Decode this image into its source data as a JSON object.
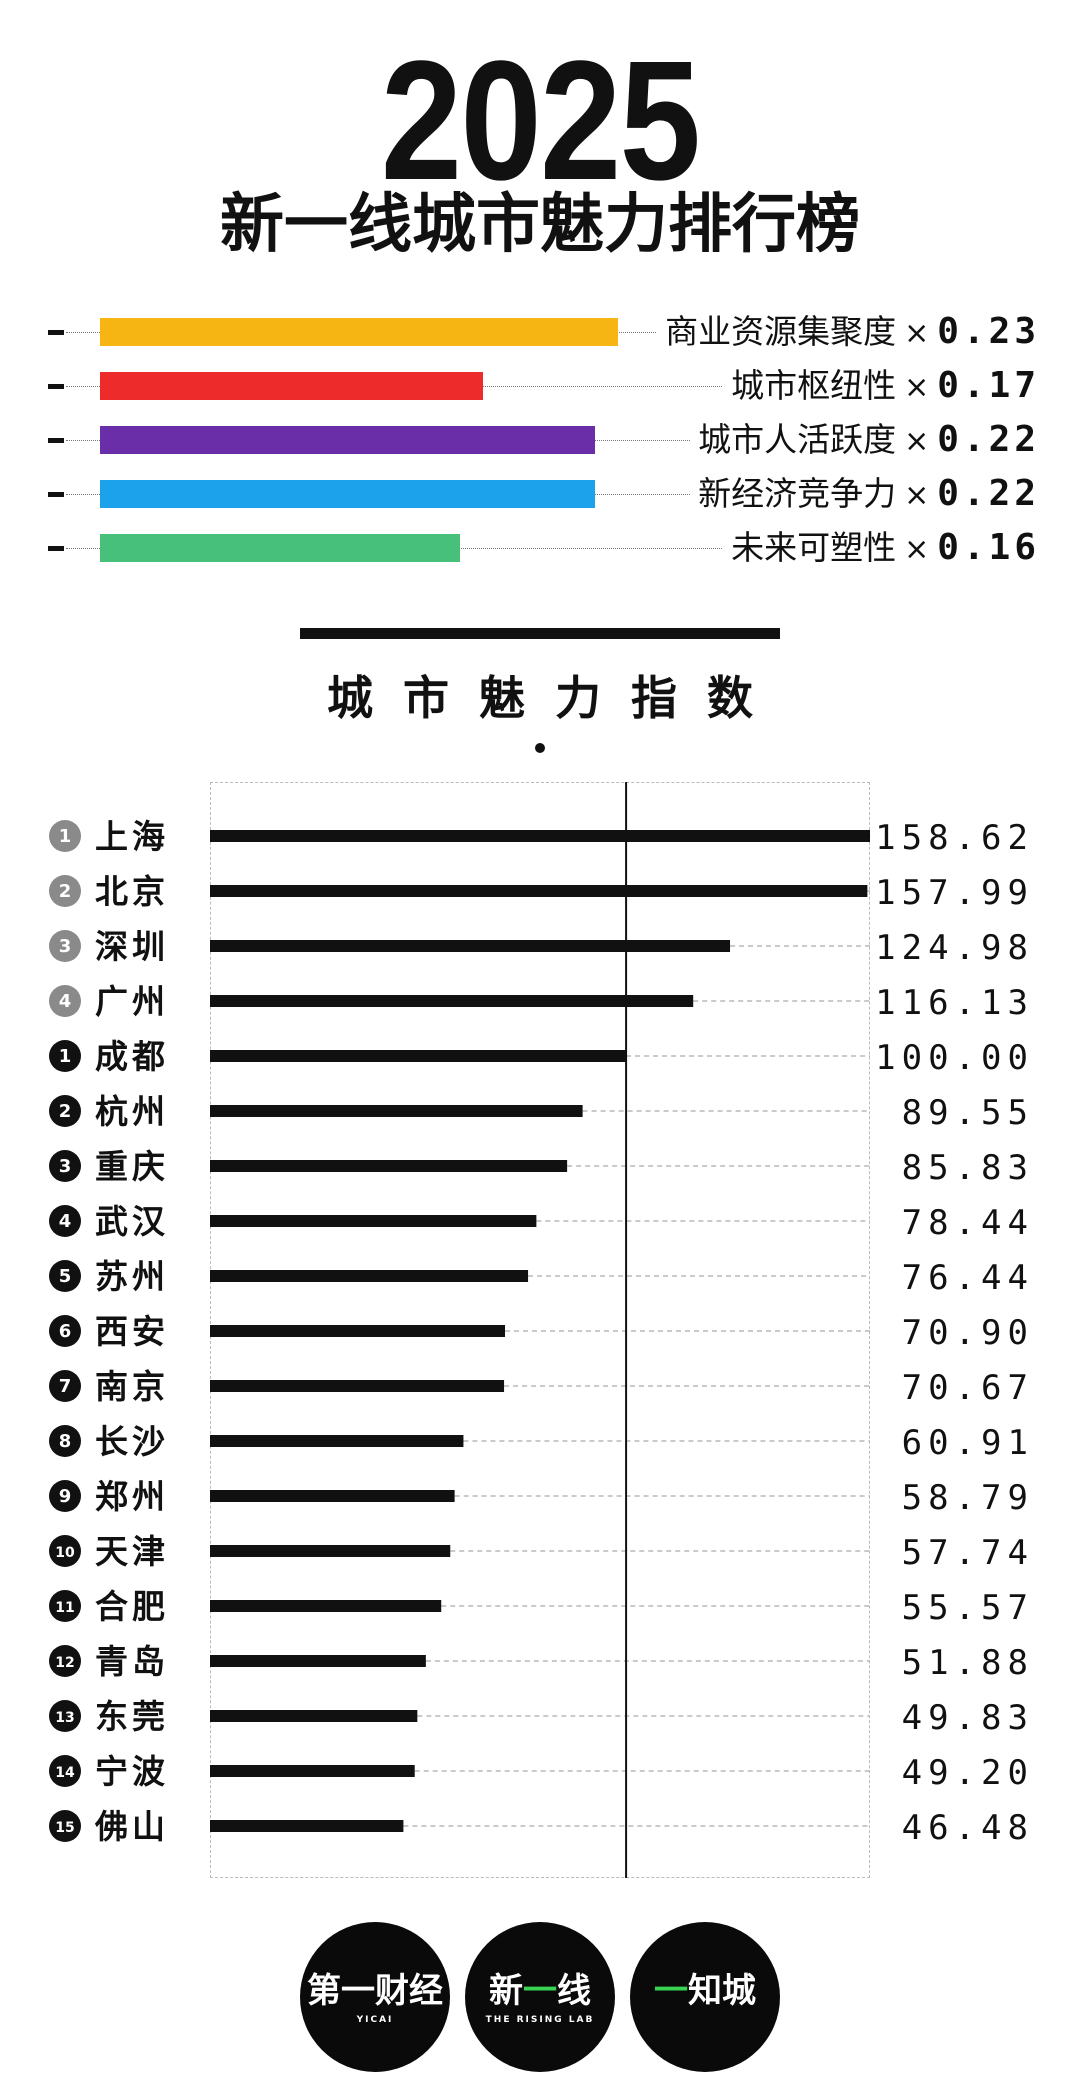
{
  "header": {
    "year": "2025",
    "title": "新一线城市魅力排行榜"
  },
  "weights": [
    {
      "label": "商业资源集聚度",
      "mult": "×",
      "value": "0.23",
      "weight": 0.23,
      "color": "#f7b514"
    },
    {
      "label": "城市枢纽性",
      "mult": "×",
      "value": "0.17",
      "weight": 0.17,
      "color": "#ee2b2b"
    },
    {
      "label": "城市人活跃度",
      "mult": "×",
      "value": "0.22",
      "weight": 0.22,
      "color": "#6a2fa8"
    },
    {
      "label": "新经济竞争力",
      "mult": "×",
      "value": "0.22",
      "weight": 0.22,
      "color": "#1ba2ea"
    },
    {
      "label": "未来可塑性",
      "mult": "×",
      "value": "0.16",
      "weight": 0.16,
      "color": "#46c07a"
    }
  ],
  "section": {
    "title": "城市魅力指数"
  },
  "chart_data": {
    "type": "bar",
    "orientation": "horizontal",
    "reference_line": 100,
    "xlim": [
      0,
      158.62
    ],
    "categories": [
      "上海",
      "北京",
      "深圳",
      "广州",
      "成都",
      "杭州",
      "重庆",
      "武汉",
      "苏州",
      "西安",
      "南京",
      "长沙",
      "郑州",
      "天津",
      "合肥",
      "青岛",
      "东莞",
      "宁波",
      "佛山"
    ],
    "rank_badges": [
      "1",
      "2",
      "3",
      "4",
      "1",
      "2",
      "3",
      "4",
      "5",
      "6",
      "7",
      "8",
      "9",
      "10",
      "11",
      "12",
      "13",
      "14",
      "15"
    ],
    "badge_colors": [
      "#8a8a8a",
      "#8a8a8a",
      "#8a8a8a",
      "#8a8a8a",
      "#111111",
      "#111111",
      "#111111",
      "#111111",
      "#111111",
      "#111111",
      "#111111",
      "#111111",
      "#111111",
      "#111111",
      "#111111",
      "#111111",
      "#111111",
      "#111111",
      "#111111"
    ],
    "values": [
      158.62,
      157.99,
      124.98,
      116.13,
      100.0,
      89.55,
      85.83,
      78.44,
      76.44,
      70.9,
      70.67,
      60.91,
      58.79,
      57.74,
      55.57,
      51.88,
      49.83,
      49.2,
      46.48
    ],
    "value_labels": [
      "158.62",
      "157.99",
      "124.98",
      "116.13",
      "100.00",
      "89.55",
      "85.83",
      "78.44",
      "76.44",
      "70.90",
      "70.67",
      "60.91",
      "58.79",
      "57.74",
      "55.57",
      "51.88",
      "49.83",
      "49.20",
      "46.48"
    ],
    "bar_color": "#111111"
  },
  "logos": [
    {
      "main": "第一财经",
      "sub": "YICAI"
    },
    {
      "main_a": "新",
      "main_n": "一",
      "main_b": "线",
      "sub": "THE RISING LAB"
    },
    {
      "main_n": "一",
      "main_b": "知城",
      "sub": ""
    }
  ]
}
